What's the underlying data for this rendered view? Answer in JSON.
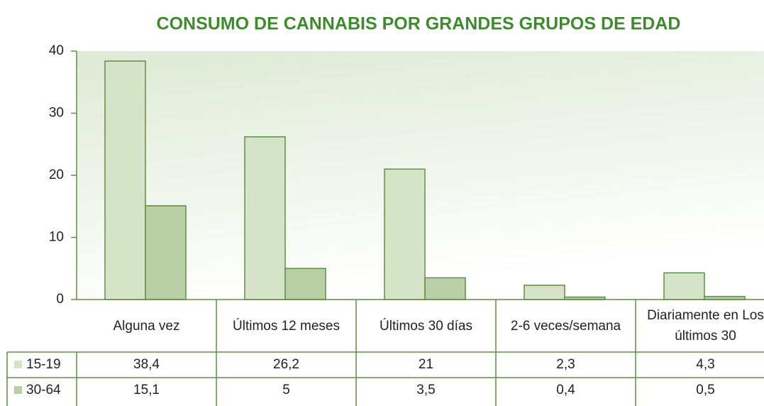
{
  "chart_data": {
    "type": "bar",
    "title": "CONSUMO DE CANNABIS POR GRANDES GRUPOS DE EDAD",
    "categories": [
      "Alguna vez",
      "Últimos  12 meses",
      "Últimos 30 días",
      "2-6 veces/semana",
      "Diariamente en Los últimos 30"
    ],
    "series": [
      {
        "name": "15-19",
        "color": "#d5e3c9",
        "values": [
          38.4,
          26.2,
          21,
          2.3,
          4.3
        ],
        "value_labels": [
          "38,4",
          "26,2",
          "21",
          "2,3",
          "4,3"
        ]
      },
      {
        "name": "30-64",
        "color": "#b9cfa6",
        "values": [
          15.1,
          5,
          3.5,
          0.4,
          0.5
        ],
        "value_labels": [
          "15,1",
          "5",
          "3,5",
          "0,4",
          "0,5"
        ]
      }
    ],
    "ylim": [
      0,
      40
    ],
    "yticks": [
      0,
      10,
      20,
      30,
      40
    ],
    "grid": false
  }
}
